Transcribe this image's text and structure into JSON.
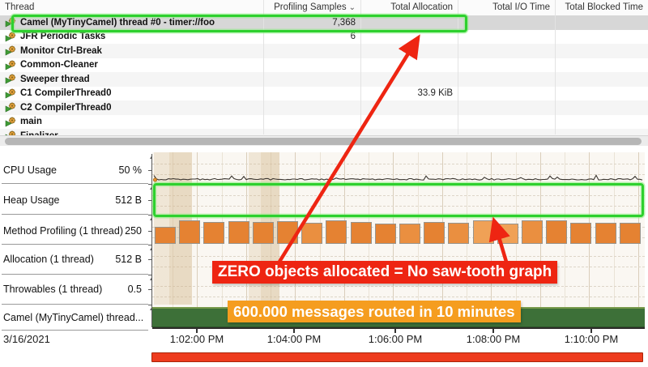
{
  "table": {
    "columns": [
      "Thread",
      "Profiling Samples",
      "Total Allocation",
      "Total I/O Time",
      "Total Blocked Time"
    ],
    "sorted_column": "Profiling Samples",
    "sort_caret": "⌄",
    "rows": [
      {
        "name": "Camel (MyTinyCamel) thread #0 - timer://foo",
        "profiling_samples": "7,368",
        "total_allocation": "",
        "total_io_time": "",
        "total_blocked_time": "",
        "selected": true
      },
      {
        "name": "JFR Periodic Tasks",
        "profiling_samples": "6",
        "total_allocation": "",
        "total_io_time": "",
        "total_blocked_time": ""
      },
      {
        "name": "Monitor Ctrl-Break",
        "profiling_samples": "",
        "total_allocation": "",
        "total_io_time": "",
        "total_blocked_time": ""
      },
      {
        "name": "Common-Cleaner",
        "profiling_samples": "",
        "total_allocation": "",
        "total_io_time": "",
        "total_blocked_time": ""
      },
      {
        "name": "Sweeper thread",
        "profiling_samples": "",
        "total_allocation": "",
        "total_io_time": "",
        "total_blocked_time": ""
      },
      {
        "name": "C1 CompilerThread0",
        "profiling_samples": "",
        "total_allocation": "33.9 KiB",
        "total_io_time": "",
        "total_blocked_time": ""
      },
      {
        "name": "C2 CompilerThread0",
        "profiling_samples": "",
        "total_allocation": "",
        "total_io_time": "",
        "total_blocked_time": ""
      },
      {
        "name": "main",
        "profiling_samples": "",
        "total_allocation": "",
        "total_io_time": "",
        "total_blocked_time": ""
      },
      {
        "name": "Finalizer",
        "profiling_samples": "",
        "total_allocation": "",
        "total_io_time": "",
        "total_blocked_time": ""
      }
    ]
  },
  "timeline": {
    "lanes": [
      {
        "label": "CPU Usage",
        "value": "50 %"
      },
      {
        "label": "Heap Usage",
        "value": "512 B"
      },
      {
        "label": "Method Profiling (1 thread)",
        "value": "250"
      },
      {
        "label": "Allocation (1 thread)",
        "value": "512 B"
      },
      {
        "label": "Throwables (1 thread)",
        "value": "0.5"
      },
      {
        "label": "Camel (MyTinyCamel) thread...",
        "value": ""
      }
    ],
    "date": "3/16/2021",
    "time_ticks": [
      "1:02:00 PM",
      "1:04:00 PM",
      "1:06:00 PM",
      "1:08:00 PM",
      "1:10:00 PM"
    ]
  },
  "annotations": {
    "red_banner": "ZERO objects allocated = No saw-tooth graph",
    "orange_banner": "600.000 messages routed in 10 minutes"
  },
  "colors": {
    "annotation_green": "#2ed02e",
    "arrow_red": "#ee2512",
    "banner_red": "#ee2512",
    "banner_orange": "#f59d1f",
    "block_orange": "#e8883a",
    "camel_bar_green": "#3d7038",
    "range_bar_red": "#ee3b1d",
    "selected_row_gray": "#d7d7d7"
  }
}
